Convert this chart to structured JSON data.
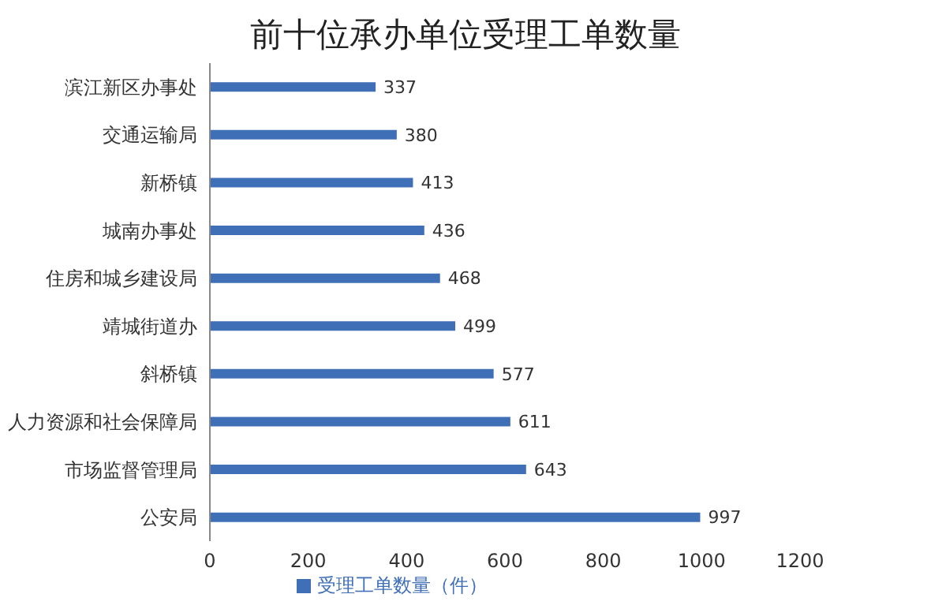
{
  "chart_data": {
    "type": "bar",
    "orientation": "horizontal",
    "title": "前十位承办单位受理工单数量",
    "categories": [
      "滨江新区办事处",
      "交通运输局",
      "新桥镇",
      "城南办事处",
      "住房和城乡建设局",
      "靖城街道办",
      "斜桥镇",
      "人力资源和社会保障局",
      "市场监督管理局",
      "公安局"
    ],
    "series": [
      {
        "name": "受理工单数量（件）",
        "color": "#3f6fb6",
        "values": [
          337,
          380,
          413,
          436,
          468,
          499,
          577,
          611,
          643,
          997
        ]
      }
    ],
    "xlim": [
      0,
      1200
    ],
    "xticks": [
      0,
      200,
      400,
      600,
      800,
      1000,
      1200
    ],
    "data_labels": true,
    "legend": "bottom",
    "grid": false
  }
}
